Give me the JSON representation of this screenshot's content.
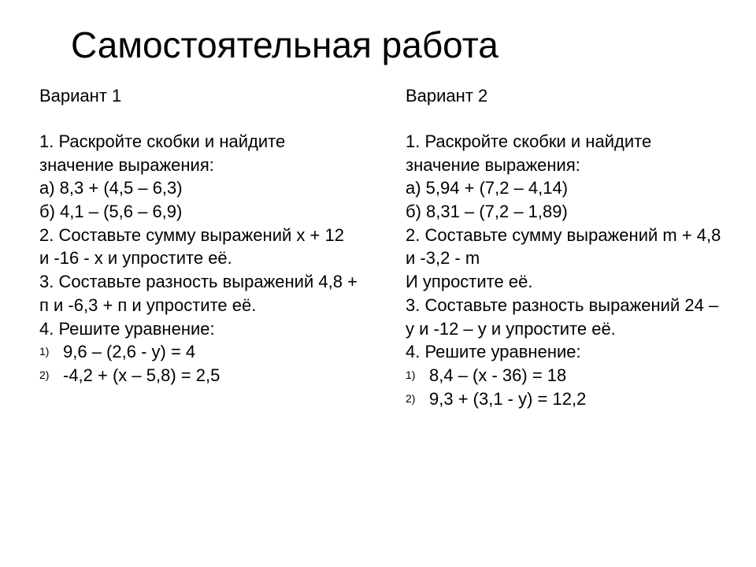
{
  "title": "Самостоятельная работа",
  "variant1": {
    "header": "Вариант 1",
    "task1_intro": "1. Раскройте скобки и найдите значение выражения:",
    "task1a": "а) 8,3 + (4,5 – 6,3)",
    "task1b": "б) 4,1 – (5,6 – 6,9)",
    "task2": "2. Составьте сумму выражений х + 12 и -16 - х и упростите её.",
    "task3": "3. Составьте разность выражений 4,8 + п и -6,3 + п и упростите её.",
    "task4_intro": "4. Решите уравнение:",
    "eq1": "9,6 – (2,6 - у) = 4",
    "eq2": "-4,2 + (х – 5,8) = 2,5"
  },
  "variant2": {
    "header": "Вариант 2",
    "task1_intro": "1. Раскройте скобки и найдите значение выражения:",
    "task1a": "а) 5,94 + (7,2 – 4,14)",
    "task1b": "б) 8,31 – (7,2 – 1,89)",
    "task2": "2. Составьте сумму выражений m + 4,8 и -3,2 - m",
    "task2b": "И упростите её.",
    "task3": "3. Составьте разность выражений 24 – у и -12 – у и упростите её.",
    "task4_intro": "4. Решите уравнение:",
    "eq1": "8,4 – (х - 36) = 18",
    "eq2": "9,3 + (3,1 - у) = 12,2"
  },
  "style": {
    "background_color": "#ffffff",
    "text_color": "#000000",
    "title_fontsize": 46,
    "body_fontsize": 22,
    "counter_fontsize": 14,
    "line_height": 1.35
  }
}
